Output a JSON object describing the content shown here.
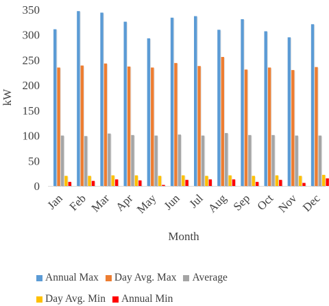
{
  "chart_data": {
    "type": "bar",
    "xlabel": "Month",
    "ylabel": "kW",
    "ylim": [
      0,
      350
    ],
    "yticks": [
      0,
      50,
      100,
      150,
      200,
      250,
      300,
      350
    ],
    "grid": false,
    "legend_position": "bottom",
    "categories": [
      "Jan",
      "Feb",
      "Mar",
      "Apr",
      "May",
      "Jun",
      "Jul",
      "Aug",
      "Sep",
      "Oct",
      "Nov",
      "Dec"
    ],
    "series": [
      {
        "name": "Annual Max",
        "color": "#5B9BD5",
        "values": [
          311,
          347,
          344,
          326,
          293,
          334,
          337,
          310,
          331,
          307,
          295,
          321
        ]
      },
      {
        "name": "Day Avg. Max",
        "color": "#ED7D31",
        "values": [
          235,
          239,
          243,
          237,
          235,
          244,
          238,
          256,
          231,
          235,
          230,
          236
        ]
      },
      {
        "name": "Average",
        "color": "#A5A5A5",
        "values": [
          100,
          99,
          104,
          101,
          100,
          102,
          100,
          105,
          101,
          101,
          100,
          100
        ]
      },
      {
        "name": "Day Avg. Min",
        "color": "#FFC000",
        "values": [
          20,
          20,
          21,
          21,
          20,
          21,
          20,
          21,
          20,
          21,
          20,
          22
        ]
      },
      {
        "name": "Annual Min",
        "color": "#FF0000",
        "values": [
          8,
          10,
          13,
          11,
          2,
          12,
          13,
          13,
          8,
          12,
          6,
          15
        ]
      }
    ]
  }
}
